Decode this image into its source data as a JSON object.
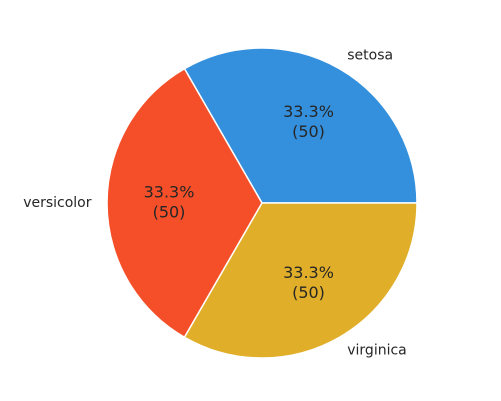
{
  "chart_data": {
    "type": "pie",
    "categories": [
      "setosa",
      "versicolor",
      "virginica"
    ],
    "values": [
      50,
      50,
      50
    ],
    "percent_labels": [
      "33.3%",
      "33.3%",
      "33.3%"
    ],
    "count_labels": [
      "(50)",
      "(50)",
      "(50)"
    ],
    "colors": [
      "#3490dc",
      "#f44f28",
      "#e0ae28"
    ],
    "title": "",
    "start_angle_deg": 0,
    "direction": "counterclockwise",
    "legend": "none"
  }
}
